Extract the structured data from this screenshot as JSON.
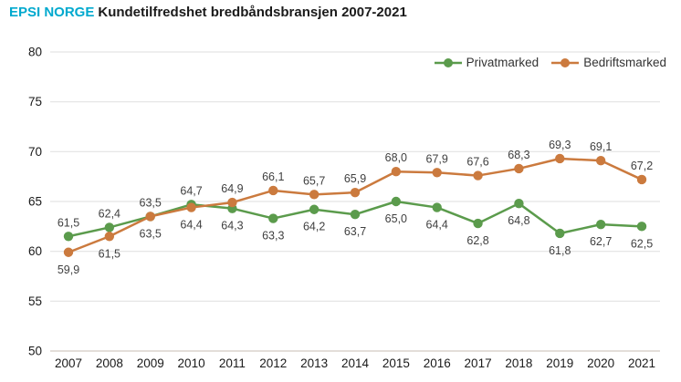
{
  "header": {
    "brand": "EPSI NORGE",
    "title": "Kundetilfredshet bredbåndsbransjen 2007-2021"
  },
  "colors": {
    "brand": "#00a9ce",
    "privatmarked": "#5b9b4c",
    "bedriftsmarked": "#cb7a3e",
    "grid": "#e3e3e3",
    "axis_line": "#d2cbc2",
    "value_label": "#3f3f3f",
    "tick_label": "#1a1a1a"
  },
  "chart_data": {
    "type": "line",
    "title": "Kundetilfredshet bredbåndsbransjen 2007-2021",
    "x": [
      2007,
      2008,
      2009,
      2010,
      2011,
      2012,
      2013,
      2014,
      2015,
      2016,
      2017,
      2018,
      2019,
      2020,
      2021
    ],
    "series": [
      {
        "name": "Privatmarked",
        "color_key": "privatmarked",
        "values": [
          61.5,
          62.4,
          63.5,
          64.7,
          64.3,
          63.3,
          64.2,
          63.7,
          65.0,
          64.4,
          62.8,
          64.8,
          61.8,
          62.7,
          62.5
        ],
        "labels": [
          "61,5",
          "62,4",
          "63,5",
          "64,7",
          "64,3",
          "63,3",
          "64,2",
          "63,7",
          "65,0",
          "64,4",
          "62,8",
          "64,8",
          "61,8",
          "62,7",
          "62,5"
        ],
        "label_positions": [
          "above",
          "above",
          "above",
          "above",
          "below",
          "below",
          "below",
          "below",
          "below",
          "below",
          "below",
          "below",
          "below",
          "below",
          "below"
        ]
      },
      {
        "name": "Bedriftsmarked",
        "color_key": "bedriftsmarked",
        "values": [
          59.9,
          61.5,
          63.5,
          64.4,
          64.9,
          66.1,
          65.7,
          65.9,
          68.0,
          67.9,
          67.6,
          68.3,
          69.3,
          69.1,
          67.2
        ],
        "labels": [
          "59,9",
          "61,5",
          "63,5",
          "64,4",
          "64,9",
          "66,1",
          "65,7",
          "65,9",
          "68,0",
          "67,9",
          "67,6",
          "68,3",
          "69,3",
          "69,1",
          "67,2"
        ],
        "label_positions": [
          "below",
          "below",
          "below",
          "below",
          "above",
          "above",
          "above",
          "above",
          "above",
          "above",
          "above",
          "above",
          "above",
          "above",
          "above"
        ]
      }
    ],
    "ylim": [
      50,
      80
    ],
    "yticks": [
      50,
      55,
      60,
      65,
      70,
      75,
      80
    ],
    "grid": true,
    "legend_position": "top-right"
  }
}
